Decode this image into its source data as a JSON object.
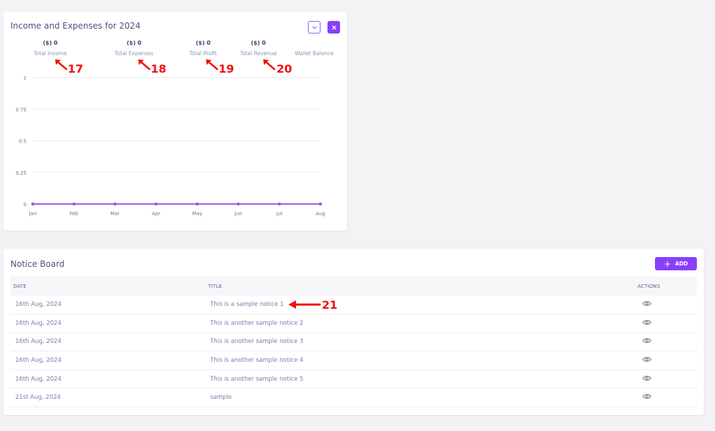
{
  "income_card": {
    "title": "Income and Expenses for 2024",
    "icons": {
      "collapse": "chevron-down-icon",
      "close": "close-icon"
    },
    "summary": [
      {
        "value": "($) 0",
        "label": "Total Income",
        "callout": "17"
      },
      {
        "value": "($) 0",
        "label": "Total Expenses",
        "callout": "18"
      },
      {
        "value": "($) 0",
        "label": "Total Profit",
        "callout": "19"
      },
      {
        "value": "($) 0",
        "label": "Total Revenue",
        "callout": "20"
      },
      {
        "value": "",
        "label": "Wallet Balance"
      }
    ]
  },
  "chart_data": {
    "type": "line",
    "title": "",
    "categories": [
      "Jan",
      "Feb",
      "Mar",
      "Apr",
      "May",
      "Jun",
      "Jul",
      "Aug"
    ],
    "series": [
      {
        "values": [
          0,
          0,
          0,
          0,
          0,
          0,
          0,
          0
        ],
        "color": "#9b5de5"
      }
    ],
    "ylim": [
      0,
      1
    ],
    "yticks": [
      "0",
      "0.25",
      "0.5",
      "0.75",
      "1"
    ],
    "grid": true,
    "colors": {
      "line": "#9b5de5",
      "grid": "#e6e8ee",
      "axis": "#dcdfe6",
      "tick_text": "#6b7090"
    }
  },
  "notice_board": {
    "title": "Notice Board",
    "add_label": "ADD",
    "columns": {
      "date": "DATE",
      "title": "TITLE",
      "actions": "ACTIONS"
    },
    "rows": [
      {
        "date": "16th Aug, 2024",
        "title": "This is a sample notice 1",
        "action_icon": "eye-icon"
      },
      {
        "date": "16th Aug, 2024",
        "title": "This is another sample notice 2",
        "action_icon": "eye-icon"
      },
      {
        "date": "16th Aug, 2024",
        "title": "This is another sample notice 3",
        "action_icon": "eye-icon"
      },
      {
        "date": "16th Aug, 2024",
        "title": "This is another sample notice 4",
        "action_icon": "eye-icon"
      },
      {
        "date": "16th Aug, 2024",
        "title": "This is another sample notice 5",
        "action_icon": "eye-icon"
      },
      {
        "date": "21st Aug, 2024",
        "title": "sample",
        "action_icon": "eye-icon"
      }
    ],
    "callout": "21"
  },
  "colors": {
    "accent": "#8a3ffc",
    "callout": "#ee1111",
    "background": "#f3f3f5"
  }
}
